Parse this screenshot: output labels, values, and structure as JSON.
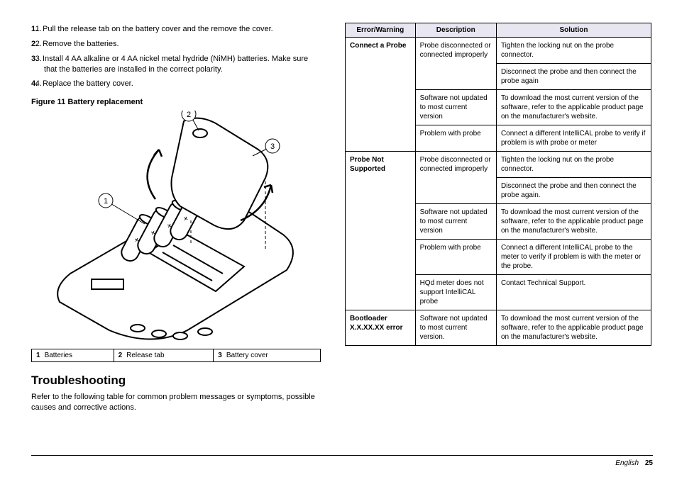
{
  "steps": [
    "Pull the release tab on the battery cover and the remove the cover.",
    "Remove the batteries.",
    "Install 4 AA alkaline or 4 AA nickel metal hydride (NiMH) batteries. Make sure that the batteries are installed in the correct polarity.",
    "Replace the battery cover."
  ],
  "figure_title": "Figure 11  Battery replacement",
  "legend": [
    {
      "n": "1",
      "label": "Batteries"
    },
    {
      "n": "2",
      "label": "Release tab"
    },
    {
      "n": "3",
      "label": "Battery cover"
    }
  ],
  "section_heading": "Troubleshooting",
  "section_text": "Refer to the following table for common problem messages or symptoms, possible causes and corrective actions.",
  "table_headers": [
    "Error/Warning",
    "Description",
    "Solution"
  ],
  "table_rows": [
    {
      "err": "Connect a Probe",
      "desc": "Probe disconnected or connected improperly",
      "sol": "Tighten the locking nut on the probe connector.",
      "err_rowspan": 4,
      "desc_rowspan": 2
    },
    {
      "sol": "Disconnect the probe and then connect the probe again"
    },
    {
      "desc": "Software not updated to most current version",
      "sol": "To download the most current version of the software, refer to the applicable product page on the manufacturer's website."
    },
    {
      "desc": "Problem with probe",
      "sol": "Connect a different IntelliCAL probe to verify if problem is with probe or meter"
    },
    {
      "err": "Probe Not Supported",
      "desc": "Probe disconnected or connected improperly",
      "sol": "Tighten the locking nut on the probe connector.",
      "err_rowspan": 5,
      "desc_rowspan": 2
    },
    {
      "sol": "Disconnect the probe and then connect the probe again."
    },
    {
      "desc": "Software not updated to most current version",
      "sol": "To download the most current version of the software, refer to the applicable product page on the manufacturer's website."
    },
    {
      "desc": "Problem with probe",
      "sol": "Connect a different IntelliCAL probe to the meter to verify if problem is with the meter or the probe."
    },
    {
      "desc": "HQd meter does not support IntelliCAL probe",
      "sol": "Contact Technical Support."
    },
    {
      "err": "Bootloader X.X.XX.XX error",
      "desc": "Software not updated to most current version.",
      "sol": "To download the most current version of the software, refer to the applicable product page on the manufacturer's website."
    }
  ],
  "footer_lang": "English",
  "footer_page": "25",
  "colors": {
    "header_bg": "#e8e6f0",
    "text": "#000000",
    "border": "#000000"
  }
}
